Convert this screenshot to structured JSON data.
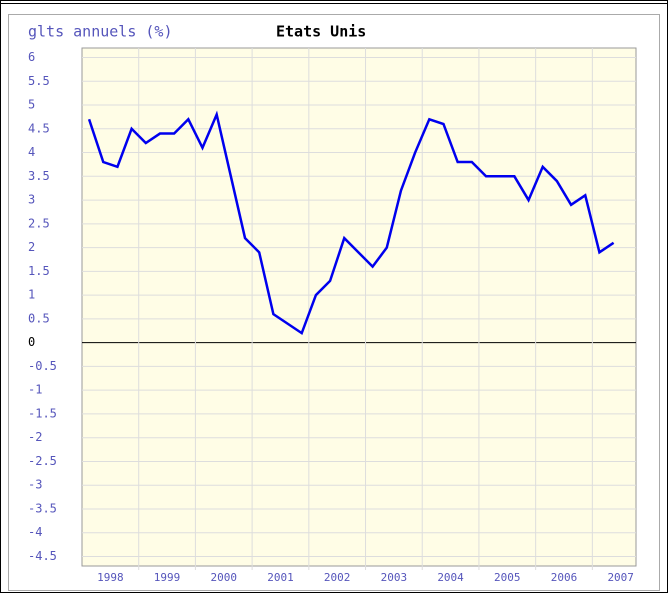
{
  "chart_data": {
    "type": "line",
    "title": "Etats Unis",
    "y_label": "glts annuels (%)",
    "x": [
      1998.125,
      1998.375,
      1998.625,
      1998.875,
      1999.125,
      1999.375,
      1999.625,
      1999.875,
      2000.125,
      2000.375,
      2000.625,
      2000.875,
      2001.125,
      2001.375,
      2001.625,
      2001.875,
      2002.125,
      2002.375,
      2002.625,
      2002.875,
      2003.125,
      2003.375,
      2003.625,
      2003.875,
      2004.125,
      2004.375,
      2004.625,
      2004.875,
      2005.125,
      2005.375,
      2005.625,
      2005.875,
      2006.125,
      2006.375,
      2006.625,
      2006.875,
      2007.125,
      2007.375
    ],
    "series": [
      {
        "name": "Etats Unis",
        "color": "#0000ee",
        "values": [
          4.7,
          3.8,
          3.7,
          4.5,
          4.2,
          4.4,
          4.4,
          4.7,
          4.1,
          4.8,
          3.5,
          2.2,
          1.9,
          0.6,
          0.4,
          0.2,
          1.0,
          1.3,
          2.2,
          1.9,
          1.6,
          2.0,
          3.2,
          4.0,
          4.7,
          4.6,
          3.8,
          3.8,
          3.5,
          3.5,
          3.5,
          3.0,
          3.7,
          3.4,
          2.9,
          3.1,
          1.9,
          2.1
        ]
      }
    ],
    "xlim": [
      1998,
      2007.77
    ],
    "xticks": [
      {
        "value": 1998.5,
        "label": "1998"
      },
      {
        "value": 1999.5,
        "label": "1999"
      },
      {
        "value": 2000.5,
        "label": "2000"
      },
      {
        "value": 2001.5,
        "label": "2001"
      },
      {
        "value": 2002.5,
        "label": "2002"
      },
      {
        "value": 2003.5,
        "label": "2003"
      },
      {
        "value": 2004.5,
        "label": "2004"
      },
      {
        "value": 2005.5,
        "label": "2005"
      },
      {
        "value": 2006.5,
        "label": "2006"
      },
      {
        "value": 2007.5,
        "label": "2007"
      }
    ],
    "xgrid": [
      1999,
      2000,
      2001,
      2002,
      2003,
      2004,
      2005,
      2006,
      2007
    ],
    "ylim": [
      -4.7,
      6.2
    ],
    "yticks": [
      6,
      5.5,
      5,
      4.5,
      4,
      3.5,
      3,
      2.5,
      2,
      1.5,
      1,
      0.5,
      0,
      {
        "value": -0.5,
        "label": "-0.5"
      },
      {
        "value": -1,
        "label": "-1"
      },
      {
        "value": -1.5,
        "label": "-1.5"
      },
      {
        "value": -2,
        "label": "-2"
      },
      {
        "value": -2.5,
        "label": "-2.5"
      },
      {
        "value": -3,
        "label": "-3"
      },
      {
        "value": -3.5,
        "label": "-3.5"
      },
      {
        "value": -4,
        "label": "-4"
      },
      {
        "value": -4.5,
        "label": "-4.5"
      }
    ],
    "grid": true
  }
}
